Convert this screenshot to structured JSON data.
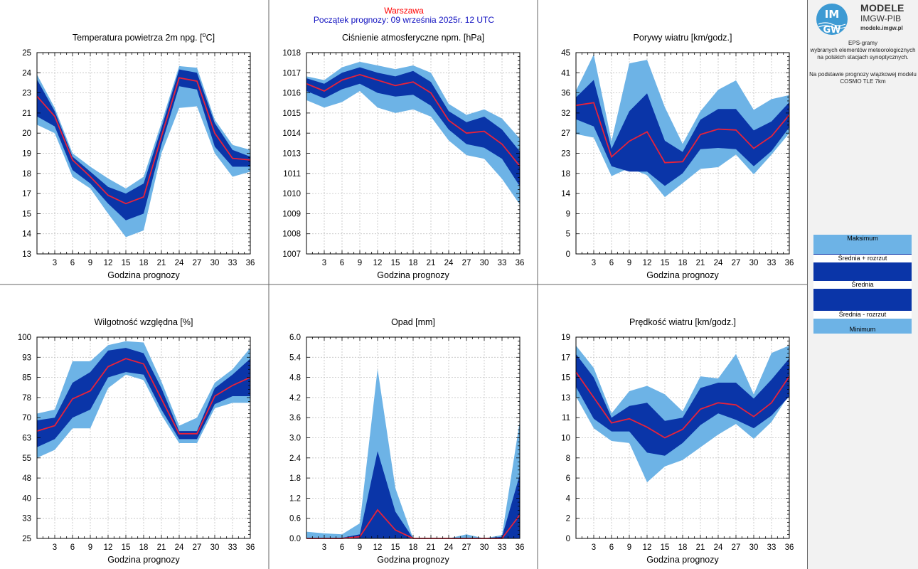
{
  "header": {
    "city": "Warszawa",
    "forecast_start": "Początek prognozy: 09 września 2025r. 12 UTC"
  },
  "colors": {
    "band_outer": "#6db3e6",
    "band_inner": "#0a35a8",
    "mean_line": "#e8223a",
    "grid": "#c0c0c0"
  },
  "sidebar": {
    "brand_line1": "MODELE",
    "brand_line2": "IMGW-PIB",
    "brand_url": "modele.imgw.pl",
    "logo_text_top": "IM",
    "logo_text_bottom": "GW",
    "desc_line1": "EPS-gramy",
    "desc_line2": "wybranych elementów meteorologicznych",
    "desc_line3": "na polskich stacjach  synoptycznych.",
    "desc_line4": "Na podstawie prognozy wiązkowej modelu",
    "desc_line5": "COSMO TLE 7km",
    "legend": {
      "max": "Maksimum",
      "mean_plus": "Średnia + rozrzut",
      "mean": "Średnia",
      "mean_minus": "Średnia - rozrzut",
      "min": "Minimum"
    }
  },
  "chart_data": [
    {
      "type": "area",
      "title_prefix": "Temperatura powietrza 2m npg. [",
      "title_sup": "o",
      "title_suffix": "C]",
      "xlabel": "Godzina prognozy",
      "x": [
        0,
        3,
        6,
        9,
        12,
        15,
        18,
        21,
        24,
        27,
        30,
        33,
        36
      ],
      "xticks": [
        "3",
        "6",
        "9",
        "12",
        "15",
        "18",
        "21",
        "24",
        "27",
        "30",
        "33",
        "36"
      ],
      "xlim": [
        0,
        36
      ],
      "ylim": [
        13,
        25
      ],
      "yticks": [
        "13",
        "14",
        "15",
        "17",
        "18",
        "19",
        "20",
        "21",
        "23",
        "24",
        "25"
      ],
      "minimum": [
        20.7,
        20.2,
        17.6,
        16.9,
        15.4,
        14.0,
        14.4,
        19.0,
        21.7,
        21.8,
        19.0,
        17.6,
        17.9
      ],
      "mean_minus_spread": [
        21.2,
        20.6,
        18.0,
        17.2,
        16.0,
        15.0,
        15.4,
        19.5,
        23.0,
        22.8,
        19.4,
        18.2,
        18.2
      ],
      "mean": [
        22.4,
        21.2,
        18.6,
        17.6,
        16.5,
        16.0,
        16.4,
        20.0,
        23.5,
        23.3,
        20.2,
        18.7,
        18.6
      ],
      "mean_plus_spread": [
        23.4,
        21.5,
        18.8,
        17.9,
        17.0,
        16.6,
        17.2,
        20.5,
        24.0,
        23.8,
        20.8,
        19.2,
        18.8
      ],
      "maximum": [
        23.7,
        21.7,
        19.0,
        18.2,
        17.5,
        16.9,
        17.6,
        20.8,
        24.2,
        24.1,
        21.0,
        19.5,
        19.2
      ]
    },
    {
      "type": "area",
      "title_prefix": "Ciśnienie atmosferyczne npm. [hPa]",
      "title_sup": "",
      "title_suffix": "",
      "xlabel": "Godzina prognozy",
      "x": [
        0,
        3,
        6,
        9,
        12,
        15,
        18,
        21,
        24,
        27,
        30,
        33,
        36
      ],
      "xticks": [
        "3",
        "6",
        "9",
        "12",
        "15",
        "18",
        "21",
        "24",
        "27",
        "30",
        "33",
        "36"
      ],
      "xlim": [
        0,
        36
      ],
      "ylim": [
        1007,
        1018
      ],
      "yticks": [
        "1007",
        "1008",
        "1009",
        "1010",
        "1011",
        "1013",
        "1014",
        "1015",
        "1016",
        "1017",
        "1018"
      ],
      "minimum": [
        1015.4,
        1015.0,
        1015.3,
        1015.9,
        1015.0,
        1014.7,
        1014.9,
        1014.5,
        1013.2,
        1012.4,
        1012.2,
        1011.1,
        1009.7
      ],
      "mean_minus_spread": [
        1015.9,
        1015.5,
        1016.0,
        1016.3,
        1015.8,
        1015.6,
        1015.7,
        1015.1,
        1013.8,
        1013.0,
        1012.8,
        1012.2,
        1010.7
      ],
      "mean": [
        1016.3,
        1015.9,
        1016.5,
        1016.8,
        1016.5,
        1016.2,
        1016.4,
        1015.8,
        1014.3,
        1013.6,
        1013.7,
        1013.0,
        1011.8
      ],
      "mean_plus_spread": [
        1016.6,
        1016.3,
        1016.9,
        1017.2,
        1016.9,
        1016.7,
        1017.0,
        1016.4,
        1014.8,
        1014.2,
        1014.5,
        1013.8,
        1012.6
      ],
      "maximum": [
        1016.7,
        1016.5,
        1017.2,
        1017.5,
        1017.3,
        1017.1,
        1017.3,
        1016.9,
        1015.2,
        1014.6,
        1014.9,
        1014.4,
        1013.3
      ]
    },
    {
      "type": "area",
      "title_prefix": "Porywy wiatru [km/godz.]",
      "title_sup": "",
      "title_suffix": "",
      "xlabel": "Godzina prognozy",
      "x": [
        0,
        3,
        6,
        9,
        12,
        15,
        18,
        21,
        24,
        27,
        30,
        33,
        36
      ],
      "xticks": [
        "3",
        "6",
        "9",
        "12",
        "15",
        "18",
        "21",
        "24",
        "27",
        "30",
        "33",
        "36"
      ],
      "xlim": [
        0,
        36
      ],
      "ylim": [
        0,
        45
      ],
      "yticks": [
        "0",
        "5",
        "9",
        "14",
        "18",
        "23",
        "27",
        "32",
        "36",
        "41",
        "45"
      ],
      "minimum": [
        26.8,
        26.0,
        17.4,
        19.2,
        17.6,
        12.7,
        15.8,
        19.0,
        19.4,
        22.2,
        17.8,
        22.2,
        27.0
      ],
      "mean_minus_spread": [
        30.1,
        28.5,
        19.6,
        18.4,
        18.4,
        15.2,
        18.0,
        23.4,
        23.7,
        23.4,
        19.6,
        23.0,
        28.3
      ],
      "mean": [
        33.2,
        33.8,
        21.7,
        25.2,
        27.3,
        20.4,
        20.6,
        26.7,
        27.9,
        27.7,
        23.6,
        26.3,
        31.1
      ],
      "mean_plus_spread": [
        35.0,
        38.9,
        23.5,
        31.9,
        35.9,
        25.3,
        22.8,
        30.0,
        32.4,
        32.4,
        27.6,
        29.6,
        33.9
      ],
      "maximum": [
        36.5,
        44.6,
        25.2,
        42.6,
        43.4,
        32.8,
        24.6,
        31.9,
        36.7,
        38.8,
        32.2,
        34.6,
        35.5
      ]
    },
    {
      "type": "area",
      "title_prefix": "Wilgotność względna [%]",
      "title_sup": "",
      "title_suffix": "",
      "xlabel": "Godzina prognozy",
      "x": [
        0,
        3,
        6,
        9,
        12,
        15,
        18,
        21,
        24,
        27,
        30,
        33,
        36
      ],
      "xticks": [
        "3",
        "6",
        "9",
        "12",
        "15",
        "18",
        "21",
        "24",
        "27",
        "30",
        "33",
        "36"
      ],
      "xlim": [
        0,
        36
      ],
      "ylim": [
        25,
        100
      ],
      "yticks": [
        "25",
        "33",
        "40",
        "48",
        "55",
        "63",
        "70",
        "78",
        "85",
        "93",
        "100"
      ],
      "minimum": [
        55.0,
        58.0,
        66.0,
        66.0,
        81.0,
        86.0,
        84.0,
        71.0,
        60.5,
        60.5,
        73.5,
        75.5,
        75.5
      ],
      "mean_minus_spread": [
        59.0,
        62.0,
        70.0,
        73.0,
        85.0,
        87.0,
        86.0,
        73.0,
        62.0,
        62.0,
        75.0,
        78.0,
        78.0
      ],
      "mean": [
        65.0,
        67.0,
        77.0,
        80.0,
        89.0,
        92.0,
        90.0,
        77.0,
        64.0,
        64.0,
        78.0,
        82.0,
        85.0
      ],
      "mean_plus_spread": [
        69.0,
        70.0,
        83.0,
        87.0,
        95.0,
        96.0,
        94.0,
        81.0,
        65.0,
        65.0,
        81.0,
        86.0,
        92.0
      ],
      "maximum": [
        71.5,
        73.0,
        91.0,
        91.0,
        97.0,
        98.5,
        98.0,
        83.5,
        67.0,
        70.0,
        83.0,
        88.0,
        96.0
      ]
    },
    {
      "type": "area",
      "title_prefix": "Opad [mm]",
      "title_sup": "",
      "title_suffix": "",
      "xlabel": "Godzina prognozy",
      "x": [
        0,
        3,
        6,
        9,
        12,
        15,
        18,
        21,
        24,
        27,
        30,
        33,
        36
      ],
      "xticks": [
        "3",
        "6",
        "9",
        "12",
        "15",
        "18",
        "21",
        "24",
        "27",
        "30",
        "33",
        "36"
      ],
      "xlim": [
        0,
        36
      ],
      "ylim": [
        0,
        6
      ],
      "yticks": [
        "0.0",
        "0.6",
        "1.2",
        "1.8",
        "2.4",
        "3.0",
        "3.6",
        "4.2",
        "4.8",
        "5.4",
        "6.0"
      ],
      "minimum": [
        0,
        0,
        0,
        0,
        0,
        0,
        0,
        0,
        0,
        0,
        0,
        0,
        0
      ],
      "mean_minus_spread": [
        0,
        0,
        0,
        0,
        0,
        0,
        0,
        0,
        0,
        0,
        0,
        0,
        0
      ],
      "mean": [
        0.0,
        0.0,
        0.0,
        0.05,
        0.85,
        0.25,
        0.0,
        0.0,
        0.0,
        0.0,
        0.0,
        0.0,
        0.7
      ],
      "mean_plus_spread": [
        0.0,
        0.0,
        0.02,
        0.12,
        2.6,
        0.8,
        0.0,
        0.0,
        0.0,
        0.0,
        0.0,
        0.05,
        1.9
      ],
      "maximum": [
        0.2,
        0.15,
        0.12,
        0.45,
        5.05,
        1.5,
        0.0,
        0.0,
        0.0,
        0.12,
        0.0,
        0.1,
        3.5
      ]
    },
    {
      "type": "area",
      "title_prefix": "Prędkość wiatru [km/godz.]",
      "title_sup": "",
      "title_suffix": "",
      "xlabel": "Godzina prognozy",
      "x": [
        0,
        3,
        6,
        9,
        12,
        15,
        18,
        21,
        24,
        27,
        30,
        33,
        36
      ],
      "xticks": [
        "3",
        "6",
        "9",
        "12",
        "15",
        "18",
        "21",
        "24",
        "27",
        "30",
        "33",
        "36"
      ],
      "xlim": [
        0,
        36
      ],
      "ylim": [
        0,
        19
      ],
      "yticks": [
        "0",
        "2",
        "4",
        "6",
        "8",
        "10",
        "11",
        "13",
        "15",
        "17",
        "19"
      ],
      "minimum": [
        13.4,
        10.4,
        9.2,
        9.0,
        5.3,
        6.8,
        7.4,
        8.6,
        9.8,
        10.8,
        9.4,
        11.0,
        13.6
      ],
      "mean_minus_spread": [
        14.3,
        11.3,
        10.1,
        10.1,
        8.1,
        7.8,
        9.0,
        10.7,
        11.8,
        11.2,
        10.4,
        11.6,
        13.4
      ],
      "mean": [
        15.7,
        13.3,
        10.9,
        11.3,
        10.5,
        9.5,
        10.3,
        12.2,
        12.8,
        12.6,
        11.5,
        12.8,
        15.3
      ],
      "mean_plus_spread": [
        17.4,
        15.2,
        11.4,
        12.5,
        12.8,
        11.1,
        11.4,
        14.2,
        14.7,
        14.7,
        13.2,
        15.0,
        17.0
      ],
      "maximum": [
        18.2,
        16.1,
        11.8,
        13.9,
        14.4,
        13.6,
        12.0,
        15.3,
        15.1,
        17.4,
        13.6,
        17.5,
        18.2
      ]
    }
  ]
}
